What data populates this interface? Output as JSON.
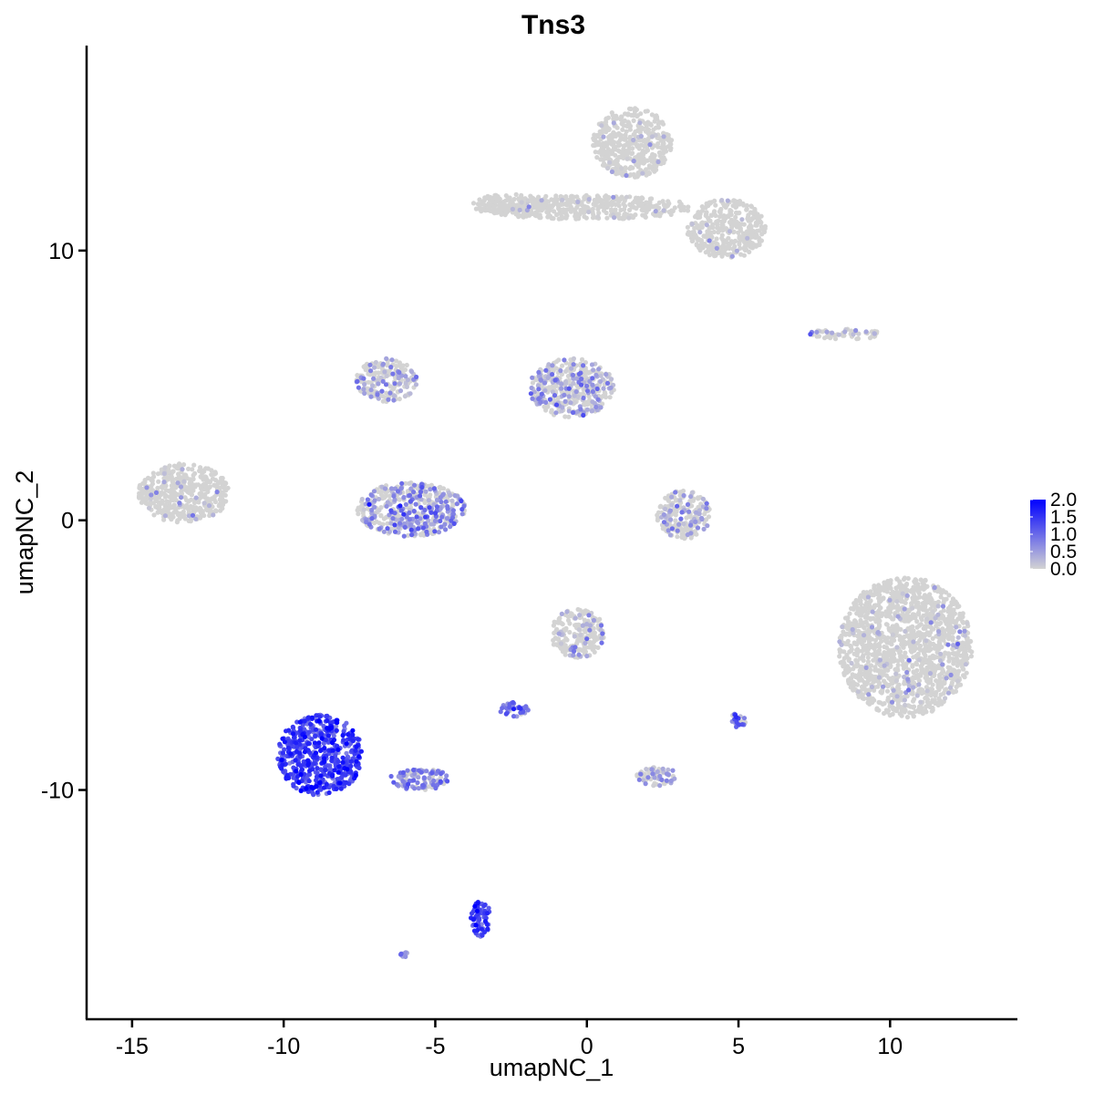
{
  "chart_data": {
    "type": "scatter",
    "title": "Tns3",
    "xlabel": "umapNC_1",
    "ylabel": "umapNC_2",
    "xlim": [
      -16.5,
      14.2
    ],
    "ylim": [
      -18.5,
      17.6
    ],
    "x_ticks": [
      -15,
      -10,
      -5,
      0,
      5,
      10
    ],
    "x_tick_labels": [
      "-15",
      "-10",
      "-5",
      "0",
      "5",
      "10"
    ],
    "y_ticks": [
      -10,
      0,
      10
    ],
    "y_tick_labels": [
      "-10",
      "0",
      "10"
    ],
    "grid": false,
    "legend_position": "right",
    "color_scale": {
      "low": "#d3d3d3",
      "high": "#0000ff",
      "range": [
        0.0,
        2.0
      ],
      "breaks": [
        2.0,
        1.5,
        1.0,
        0.5,
        0.0
      ],
      "break_labels": [
        "2.0",
        "1.5",
        "1.0",
        "0.5",
        "0.0"
      ]
    },
    "clusters": [
      {
        "id": "top-right-blob",
        "cx": 1.5,
        "cy": 14.0,
        "rx": 1.3,
        "ry": 1.3,
        "expr": 0.02
      },
      {
        "id": "top-right-band",
        "cx": 0.0,
        "cy": 11.6,
        "rx": 3.5,
        "ry": 0.45,
        "expr": 0.03
      },
      {
        "id": "top-right-tail",
        "cx": 4.6,
        "cy": 10.8,
        "rx": 1.3,
        "ry": 1.1,
        "expr": 0.02
      },
      {
        "id": "top-left-arm",
        "cx": -2.5,
        "cy": 11.7,
        "rx": 1.3,
        "ry": 0.4,
        "expr": 0.04
      },
      {
        "id": "left-isolated",
        "cx": -13.3,
        "cy": 1.0,
        "rx": 1.5,
        "ry": 1.1,
        "expr": 0.12
      },
      {
        "id": "center-upper-right",
        "cx": -0.5,
        "cy": 4.9,
        "rx": 1.4,
        "ry": 1.1,
        "expr": 0.45
      },
      {
        "id": "center-upper-left",
        "cx": -6.6,
        "cy": 5.2,
        "rx": 1.0,
        "ry": 0.8,
        "expr": 0.38
      },
      {
        "id": "center-lower",
        "cx": -5.8,
        "cy": 0.4,
        "rx": 1.8,
        "ry": 1.0,
        "expr": 0.55
      },
      {
        "id": "center-small-right",
        "cx": 3.2,
        "cy": 0.2,
        "rx": 0.9,
        "ry": 0.9,
        "expr": 0.32
      },
      {
        "id": "right-large",
        "cx": 10.5,
        "cy": -4.7,
        "rx": 2.2,
        "ry": 2.6,
        "expr": 0.06
      },
      {
        "id": "bottom-left-large",
        "cx": -8.8,
        "cy": -8.7,
        "rx": 1.4,
        "ry": 1.5,
        "expr": 1.35
      },
      {
        "id": "bottom-left-tail",
        "cx": -5.5,
        "cy": -9.6,
        "rx": 1.0,
        "ry": 0.4,
        "expr": 0.75
      },
      {
        "id": "bottom-left-spike",
        "cx": -3.5,
        "cy": -14.8,
        "rx": 0.35,
        "ry": 0.7,
        "expr": 1.35
      },
      {
        "id": "middle-lower-top",
        "cx": -0.3,
        "cy": -4.2,
        "rx": 0.9,
        "ry": 0.9,
        "expr": 0.22
      },
      {
        "id": "middle-lower-node",
        "cx": -2.4,
        "cy": -7.0,
        "rx": 0.5,
        "ry": 0.28,
        "expr": 0.95
      },
      {
        "id": "middle-right-small",
        "cx": 2.3,
        "cy": -9.5,
        "rx": 0.7,
        "ry": 0.35,
        "expr": 0.32
      },
      {
        "id": "right-thin-upper",
        "cx": 8.5,
        "cy": 6.9,
        "rx": 1.2,
        "ry": 0.2,
        "expr": 0.22
      },
      {
        "id": "right-small-dot",
        "cx": 5.0,
        "cy": -7.4,
        "rx": 0.25,
        "ry": 0.3,
        "expr": 0.95
      },
      {
        "id": "bottom-tiny",
        "cx": -6.0,
        "cy": -16.1,
        "rx": 0.15,
        "ry": 0.1,
        "expr": 0.5
      }
    ]
  }
}
